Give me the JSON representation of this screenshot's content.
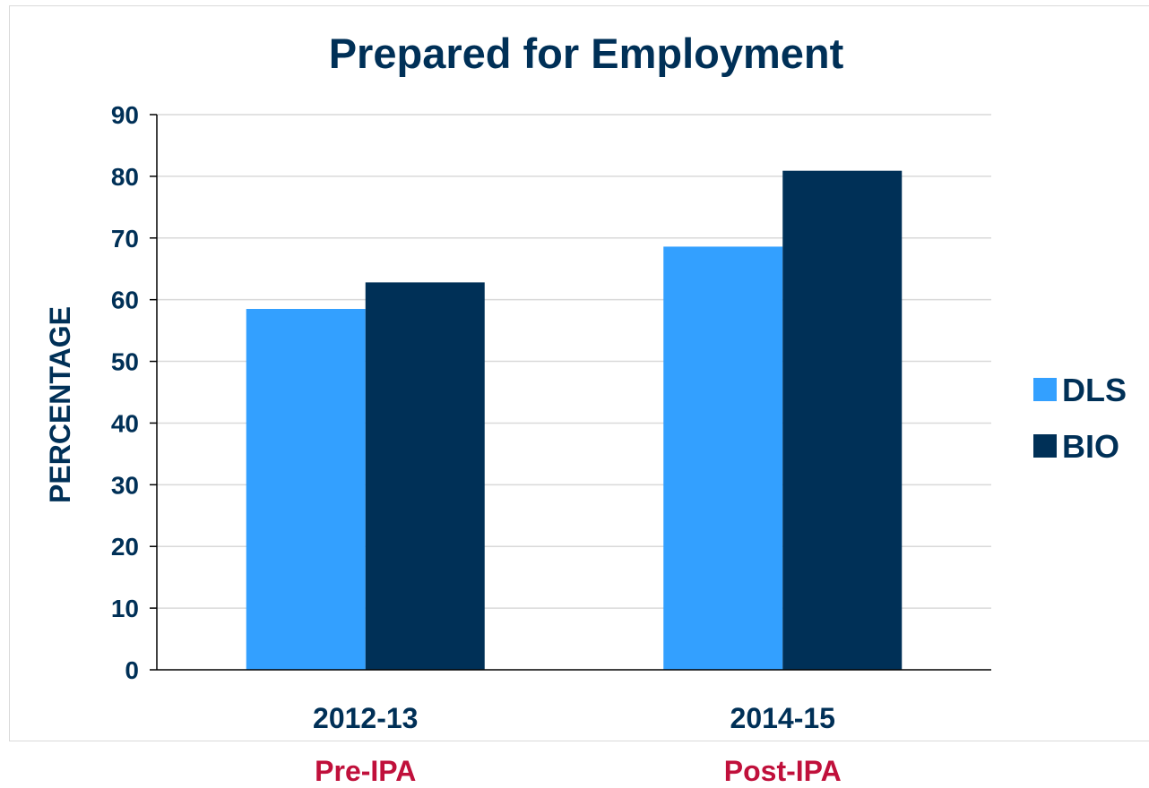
{
  "chart_data": {
    "type": "bar",
    "title": "Prepared for Employment",
    "xlabel": "",
    "ylabel": "PERCENTAGE",
    "ylim": [
      0,
      90
    ],
    "yticks": [
      "0",
      "10",
      "20",
      "30",
      "40",
      "50",
      "60",
      "70",
      "80",
      "90"
    ],
    "categories": [
      "2012-13",
      "2014-15"
    ],
    "category_sublabels": [
      "Pre-IPA",
      "Post-IPA"
    ],
    "series": [
      {
        "name": "DLS",
        "color": "#33a0ff",
        "values": [
          58.5,
          68.6
        ]
      },
      {
        "name": "BIO",
        "color": "#003057",
        "values": [
          62.8,
          80.9
        ]
      }
    ],
    "grid": true,
    "legend_position": "right",
    "colors": {
      "text": "#003057",
      "sublabel": "#c0103b",
      "grid": "#d9d9d9"
    }
  }
}
